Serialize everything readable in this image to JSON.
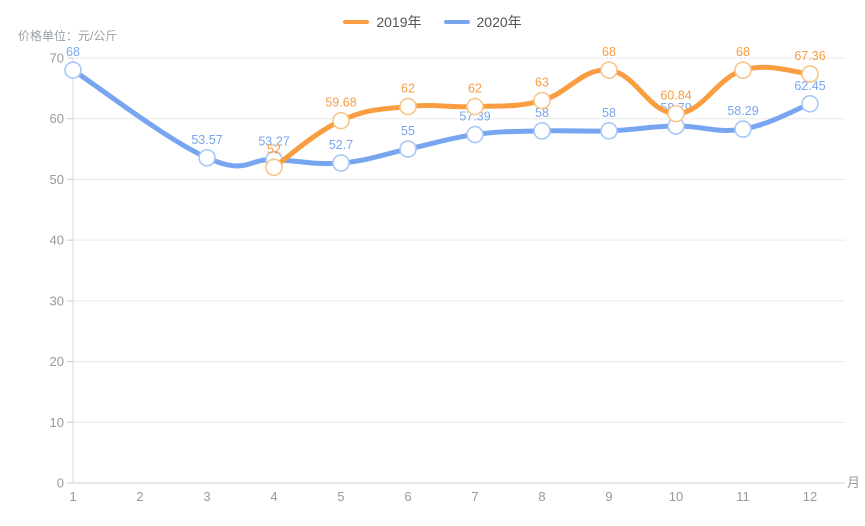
{
  "chart_data": {
    "type": "line",
    "y_axis_title": "价格单位：元/公斤",
    "x_axis_unit": "月",
    "categories": [
      1,
      2,
      3,
      4,
      5,
      6,
      7,
      8,
      9,
      10,
      11,
      12
    ],
    "series": [
      {
        "name": "2019年",
        "color": "#F99D40",
        "marker_border": "#F9C689",
        "values": [
          null,
          null,
          null,
          52,
          59.68,
          62,
          62,
          63,
          68,
          60.84,
          68,
          67.36
        ]
      },
      {
        "name": "2020年",
        "color": "#78A5F0",
        "marker_border": "#A9C7F6",
        "values": [
          68,
          null,
          53.57,
          53.27,
          52.7,
          55,
          57.39,
          58,
          58,
          58.79,
          58.29,
          62.45
        ]
      }
    ],
    "ylim": [
      0,
      70
    ],
    "y_ticks": [
      0,
      10,
      20,
      30,
      40,
      50,
      60,
      70
    ],
    "grid": true,
    "smooth": true,
    "legend_position": "top-center",
    "colors": {
      "grid_line": "#E9E9E9",
      "axis_line": "#CCCCCC",
      "y_axis_line": "#DDDDDD",
      "tick_label": "#999999",
      "marker_fill": "#FFFFFF"
    }
  }
}
